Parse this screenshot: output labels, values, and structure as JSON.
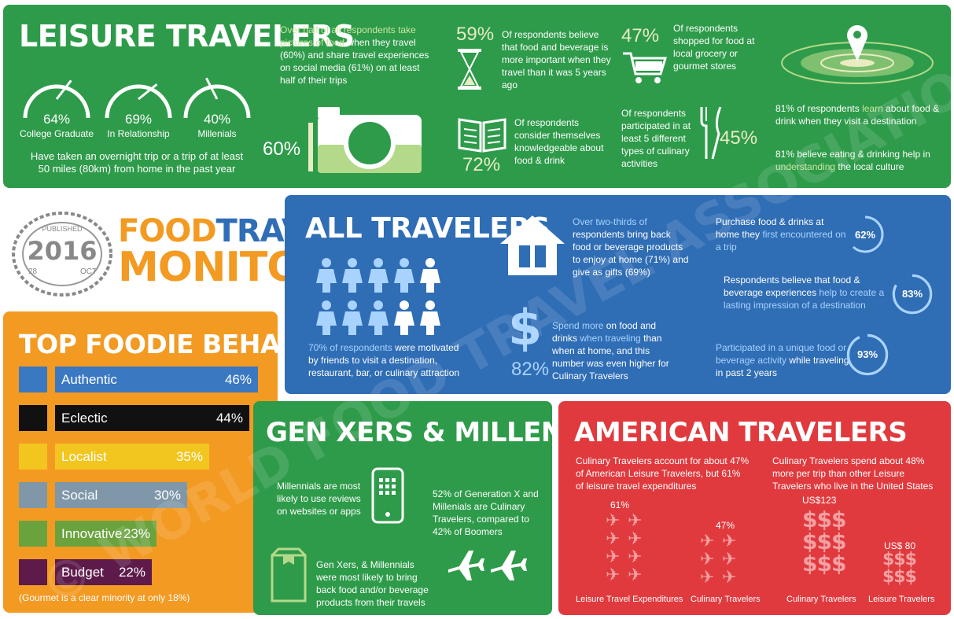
{
  "leisure": {
    "title": "LEISURE TRAVELERS",
    "gauges": [
      {
        "value": "64%",
        "label": "College Graduate",
        "fraction": 0.64
      },
      {
        "value": "69%",
        "label": "In Relationship",
        "fraction": 0.69
      },
      {
        "value": "40%",
        "label": "Millenials",
        "fraction": 0.4
      }
    ],
    "trip_text_1": "Have taken an overnight trip or a trip of at least",
    "trip_text_2": "50 miles (80km) from home in the past year",
    "photo_hl": "Over half of all respondents take pictures of food",
    "photo_rest": " when they travel (60%) and share travel experiences on social media (61%) on at least half of their trips",
    "photo_pct": "60%",
    "food_pct": "59%",
    "food_text": "Of respondents believe that food and beverage is more important when they travel than it was 5 years ago",
    "know_text": "Of respondents consider themselves knowledgeable about food & drink",
    "know_pct": "72%",
    "shop_pct": "47%",
    "shop_text": "Of respondents shopped for food at local grocery or gourmet stores",
    "activ_text": "Of respondents participated in at least 5 different types of culinary activities",
    "activ_pct": "45%",
    "learn_a": "81% of respondents ",
    "learn_hl": "learn",
    "learn_b": " about food & drink when they visit a destination",
    "help_a": "81% believe eating & drinking help in ",
    "help_hl": "understanding",
    "help_b": " the local culture"
  },
  "logo": {
    "stamp_top": "PUBLISHED",
    "stamp_year": "2016",
    "stamp_date": "28",
    "stamp_mo": "OCT",
    "line1a": "FOOD",
    "line1b": "TRAVEL",
    "line2": "MONITOR"
  },
  "all": {
    "title": "ALL TRAVELERS",
    "people_fraction": 0.7,
    "motivated_hl": "70% of respondents",
    "motivated_rest": " were motivated by friends to visit a destination, restaurant, bar, or culinary attraction",
    "home_hl": "Over two-thirds of",
    "home_rest": " respondents bring back food or beverage products to enjoy at home (71%) and give as gifts (69%)",
    "spend_a": "Spend more",
    "spend_b": " on food and drinks ",
    "spend_hl": "when traveling",
    "spend_c": " than when at home, and this number was even higher for Culinary Travelers",
    "spend_pct": "82%",
    "rings": [
      {
        "pre": "Purchase food & drinks at home they ",
        "hl": "first encountered on a trip",
        "post": "",
        "value": "62%",
        "fraction": 0.62
      },
      {
        "pre": "Respondents believe that food & beverage experiences ",
        "hl": "help to create a lasting impression of a destination",
        "post": "",
        "value": "83%",
        "fraction": 0.83
      },
      {
        "pre": "",
        "hl": "Participated in a unique food or beverage activity",
        "post": " while traveling in past 2 years",
        "value": "93%",
        "fraction": 0.93
      }
    ]
  },
  "foodie": {
    "title": "TOP FOODIE BEHAVIORS",
    "items": [
      {
        "name": "Authentic",
        "pct": "46%",
        "value": 46,
        "color": "#3a78c2",
        "icon": "mask-icon"
      },
      {
        "name": "Eclectic",
        "pct": "44%",
        "value": 44,
        "color": "#111111",
        "icon": "fork-knife-icon"
      },
      {
        "name": "Localist",
        "pct": "35%",
        "value": 35,
        "color": "#f2c61f",
        "icon": "house-icon"
      },
      {
        "name": "Social",
        "pct": "30%",
        "value": 30,
        "color": "#7f97a8",
        "icon": "glasses-icon"
      },
      {
        "name": "Innovative",
        "pct": "23%",
        "value": 23,
        "color": "#6aa33e",
        "icon": "hat-icon"
      },
      {
        "name": "Budget",
        "pct": "22%",
        "value": 22,
        "color": "#5d1a4a",
        "icon": "tag-icon"
      }
    ],
    "note": "(Gourmet is a clear minority at only 18%)"
  },
  "gen": {
    "title": "GEN XERS & MILLENNIALS",
    "reviews": "Millennials are most likely to use reviews on websites or apps",
    "culinary": "52% of Generation X and Millenials are Culinary Travelers, compared to 42% of Boomers",
    "bring": "Gen Xers, & Millennials were most likely to bring back food and/or beverage products from their travels"
  },
  "amer": {
    "title": "AMERICAN TRAVELERS",
    "left_text": "Culinary Travelers account for about 47% of American Leisure Travelers, but 61% of leisure travel expenditures",
    "right_text": "Culinary Travelers spend about 48% more per trip than other Leisure Travelers who live in the United States",
    "exp_pct": "61%",
    "cul_pct": "47%",
    "exp_label": "Leisure Travel Expenditures",
    "cul_label": "Culinary Travelers",
    "spend_cul": "US$123",
    "spend_leis": "US$ 80",
    "spend_cul_label": "Culinary Travelers",
    "spend_leis_label": "Leisure Travelers",
    "dollar_sign": "$$$"
  },
  "watermark": "© WORLD FOOD TRAVEL ASSOCIATION",
  "colors": {
    "green": "#2e9b4a",
    "blue": "#2f6db5",
    "orange": "#f39a22",
    "red": "#e03a3e",
    "highlight": "#c8e6a0"
  }
}
